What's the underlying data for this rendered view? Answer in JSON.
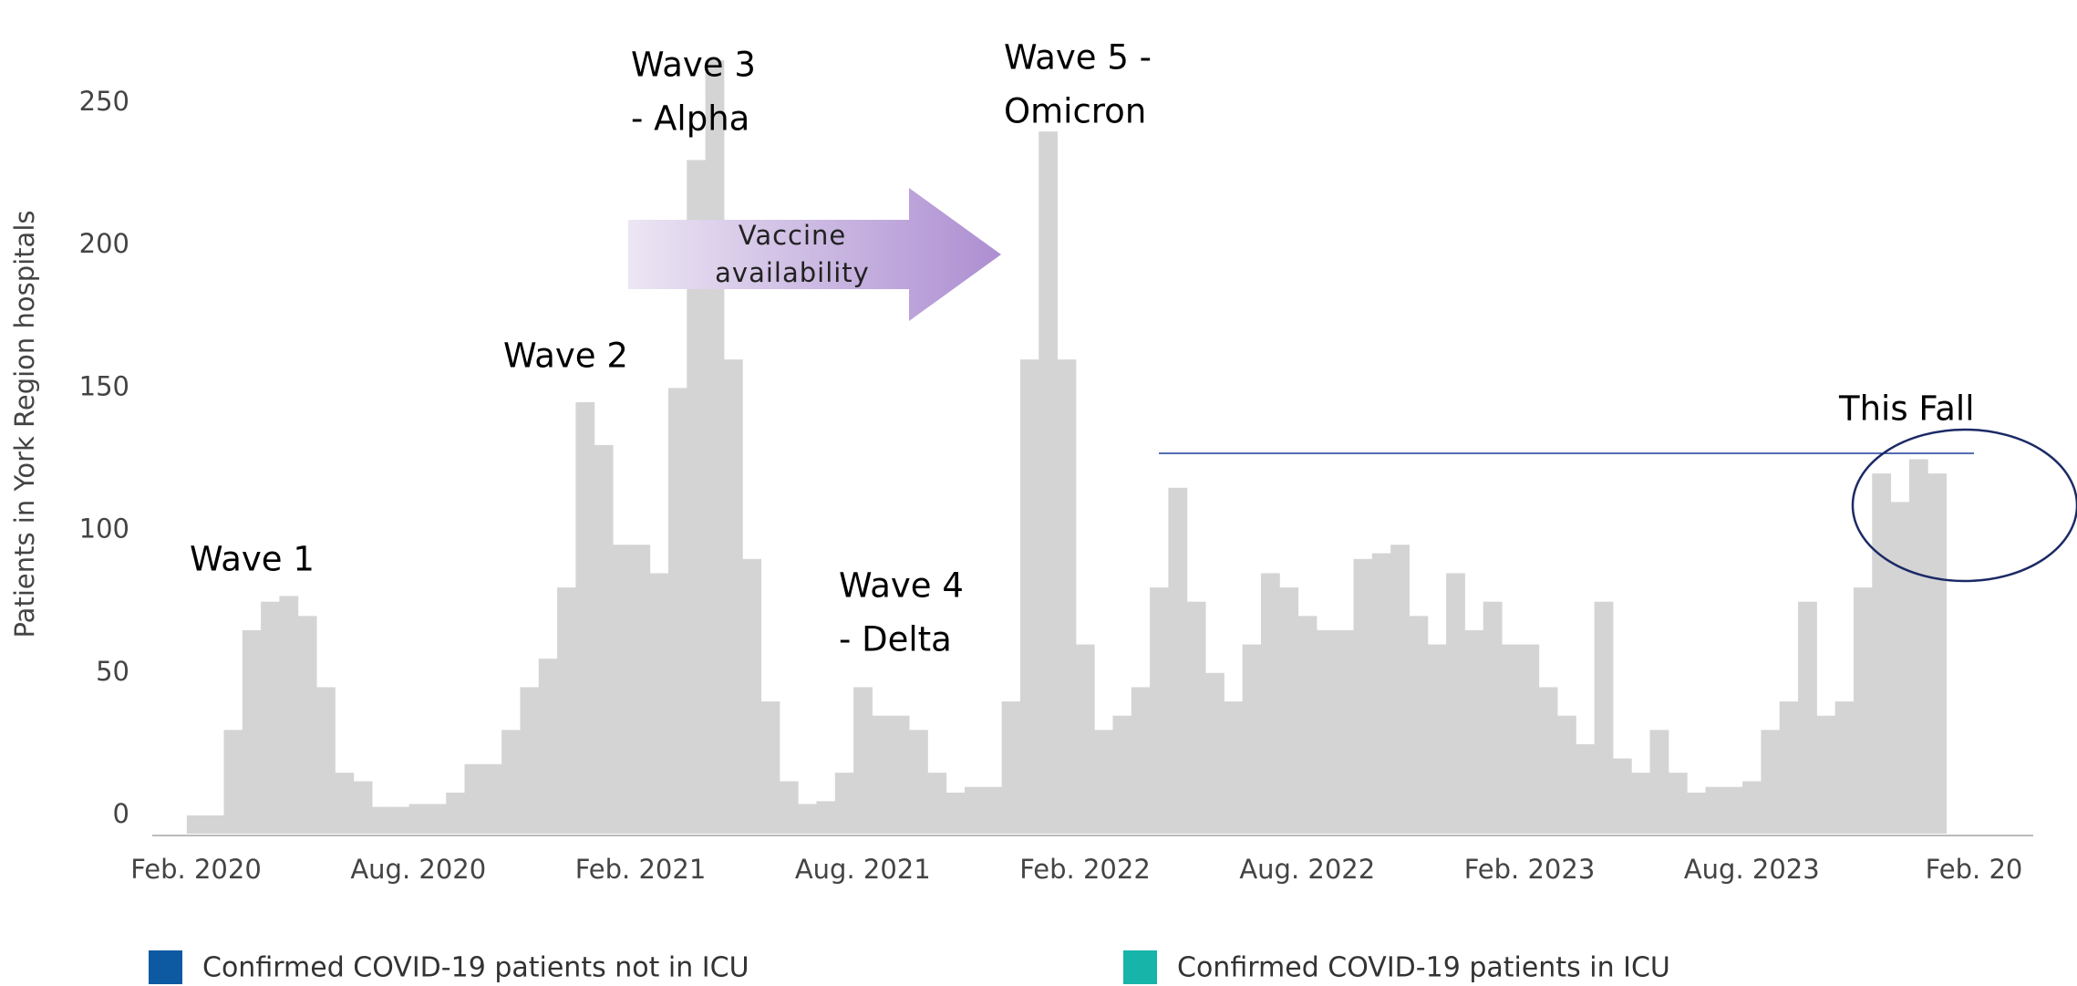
{
  "chart_data": {
    "type": "bar",
    "y_label": "Patients in York Region hospitals",
    "color": "#d4d4d4",
    "categories": [
      "Feb. 2020",
      null,
      null,
      null,
      null,
      null,
      null,
      null,
      null,
      null,
      null,
      null,
      "Aug. 2020",
      null,
      null,
      null,
      null,
      null,
      null,
      null,
      null,
      null,
      null,
      null,
      "Feb. 2021",
      null,
      null,
      null,
      null,
      null,
      null,
      null,
      null,
      null,
      null,
      null,
      "Aug. 2021",
      null,
      null,
      null,
      null,
      null,
      null,
      null,
      null,
      null,
      null,
      null,
      "Feb. 2022",
      null,
      null,
      null,
      null,
      null,
      null,
      null,
      null,
      null,
      null,
      null,
      "Aug. 2022",
      null,
      null,
      null,
      null,
      null,
      null,
      null,
      null,
      null,
      null,
      null,
      "Feb. 2023",
      null,
      null,
      null,
      null,
      null,
      null,
      null,
      null,
      null,
      null,
      null,
      "Aug. 2023",
      null,
      null,
      null,
      null,
      null,
      null,
      null,
      null,
      null,
      null,
      null,
      "Feb. 20"
    ],
    "values": [
      0,
      0,
      30,
      65,
      75,
      77,
      70,
      45,
      15,
      12,
      3,
      3,
      4,
      4,
      8,
      18,
      18,
      30,
      45,
      55,
      80,
      145,
      130,
      95,
      95,
      85,
      150,
      230,
      265,
      160,
      90,
      40,
      12,
      4,
      5,
      15,
      45,
      35,
      35,
      30,
      15,
      8,
      10,
      10,
      40,
      160,
      240,
      160,
      60,
      30,
      35,
      45,
      80,
      115,
      75,
      50,
      40,
      60,
      85,
      80,
      70,
      65,
      65,
      90,
      92,
      95,
      70,
      60,
      85,
      65,
      75,
      60,
      60,
      45,
      35,
      25,
      75,
      20,
      15,
      30,
      15,
      8,
      10,
      10,
      12,
      30,
      40,
      75,
      35,
      40,
      80,
      120,
      110,
      125,
      120,
      null,
      null
    ],
    "ylim": [
      0,
      250
    ],
    "yticks": [
      0,
      50,
      100,
      150,
      200,
      250
    ],
    "annotations": [
      [
        "Wave 1"
      ],
      [
        "Wave 2"
      ],
      [
        "Wave 3",
        "- Alpha"
      ],
      [
        "Wave 4",
        "- Delta"
      ],
      [
        "Wave 5 -",
        "Omicron"
      ],
      [
        "This Fall"
      ]
    ],
    "arrow_label": [
      "Vaccine",
      "availability"
    ],
    "legend": [
      {
        "name": "Confirmed COVID-19 patients not in ICU",
        "color": "#0d5aa3"
      },
      {
        "name": "Confirmed COVID-19 patients in ICU",
        "color": "#17b4a9"
      }
    ]
  }
}
